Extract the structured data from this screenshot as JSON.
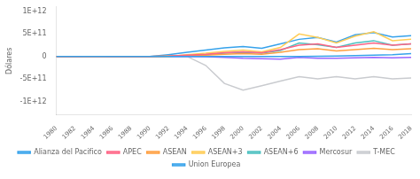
{
  "chart_data": {
    "type": "line",
    "x": [
      1980,
      1982,
      1984,
      1986,
      1988,
      1990,
      1992,
      1994,
      1996,
      1998,
      2000,
      2002,
      2004,
      2006,
      2008,
      2010,
      2012,
      2014,
      2016,
      2018
    ],
    "series": [
      {
        "name": "Alianza del Pacifico",
        "values": [
          0,
          0,
          0,
          0,
          0,
          0,
          0,
          0,
          0,
          0,
          0,
          0,
          0,
          0,
          5000000000.0,
          10000000000.0,
          20000000000.0,
          30000000000.0,
          40000000000.0,
          60000000000.0
        ]
      },
      {
        "name": "APEC",
        "values": [
          -1000000000.0,
          -2000000000.0,
          -3000000000.0,
          -2000000000.0,
          -1000000000.0,
          0,
          10000000000.0,
          30000000000.0,
          50000000000.0,
          80000000000.0,
          100000000000.0,
          80000000000.0,
          150000000000.0,
          250000000000.0,
          280000000000.0,
          200000000000.0,
          250000000000.0,
          300000000000.0,
          250000000000.0,
          280000000000.0
        ]
      },
      {
        "name": "ASEAN",
        "values": [
          -500000000.0,
          -1000000000.0,
          -2000000000.0,
          -1000000000.0,
          0,
          0,
          8000000000.0,
          15000000000.0,
          30000000000.0,
          50000000000.0,
          60000000000.0,
          50000000000.0,
          90000000000.0,
          150000000000.0,
          170000000000.0,
          120000000000.0,
          150000000000.0,
          180000000000.0,
          150000000000.0,
          170000000000.0
        ]
      },
      {
        "name": "ASEAN+3",
        "values": [
          -2000000000.0,
          -3000000000.0,
          -5000000000.0,
          -4000000000.0,
          -3000000000.0,
          -2000000000.0,
          0,
          40000000000.0,
          70000000000.0,
          110000000000.0,
          140000000000.0,
          100000000000.0,
          200000000000.0,
          500000000000.0,
          420000000000.0,
          300000000000.0,
          450000000000.0,
          550000000000.0,
          350000000000.0,
          380000000000.0
        ]
      },
      {
        "name": "ASEAN+6",
        "values": [
          -1000000000.0,
          -2000000000.0,
          -3000000000.0,
          -2000000000.0,
          -2000000000.0,
          -1000000000.0,
          5000000000.0,
          20000000000.0,
          40000000000.0,
          70000000000.0,
          90000000000.0,
          70000000000.0,
          130000000000.0,
          300000000000.0,
          260000000000.0,
          200000000000.0,
          300000000000.0,
          350000000000.0,
          250000000000.0,
          280000000000.0
        ]
      },
      {
        "name": "Mercosur",
        "values": [
          0,
          0,
          0,
          0,
          0,
          0,
          0,
          0,
          -5000000000.0,
          -20000000000.0,
          -40000000000.0,
          -50000000000.0,
          -60000000000.0,
          -20000000000.0,
          -40000000000.0,
          -40000000000.0,
          -30000000000.0,
          -20000000000.0,
          -30000000000.0,
          -20000000000.0
        ]
      },
      {
        "name": "T-MEC",
        "values": [
          -2000000000.0,
          -3000000000.0,
          -5000000000.0,
          -4000000000.0,
          -3000000000.0,
          -2000000000.0,
          -1000000000.0,
          0,
          -200000000000.0,
          -600000000000.0,
          -750000000000.0,
          -650000000000.0,
          -550000000000.0,
          -450000000000.0,
          -500000000000.0,
          -450000000000.0,
          -500000000000.0,
          -450000000000.0,
          -500000000000.0,
          -480000000000.0
        ]
      },
      {
        "name": "Union Europea",
        "values": [
          -3000000000.0,
          -5000000000.0,
          -8000000000.0,
          -6000000000.0,
          -4000000000.0,
          -2000000000.0,
          40000000000.0,
          90000000000.0,
          140000000000.0,
          190000000000.0,
          220000000000.0,
          180000000000.0,
          280000000000.0,
          380000000000.0,
          420000000000.0,
          320000000000.0,
          480000000000.0,
          530000000000.0,
          430000000000.0,
          460000000000.0
        ]
      }
    ],
    "ylabel": "Dólares",
    "xlim": [
      1980,
      2018
    ],
    "xticks": [
      1980,
      1982,
      1984,
      1986,
      1988,
      1990,
      1992,
      1994,
      1996,
      1998,
      2000,
      2002,
      2004,
      2006,
      2008,
      2010,
      2012,
      2014,
      2016,
      2018
    ],
    "ylim": [
      -1300000000000.0,
      1100000000000.0
    ],
    "yticks": [
      {
        "value": -1000000000000.0,
        "label": "-1E+12"
      },
      {
        "value": -500000000000.0,
        "label": "-5E+11"
      },
      0,
      {
        "value": 500000000000.0,
        "label": "5E+11"
      },
      {
        "value": 1000000000000.0,
        "label": "1E+12"
      }
    ],
    "grid": false,
    "legend": "bottom"
  }
}
